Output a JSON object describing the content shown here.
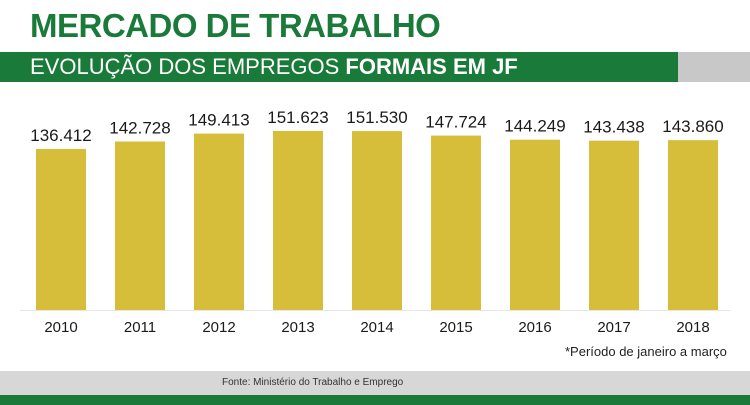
{
  "header": {
    "title": "MERCADO DE TRABALHO",
    "subtitle_light": "EVOLUÇÃO DOS EMPREGOS ",
    "subtitle_bold": "FORMAIS EM JF"
  },
  "chart_data": {
    "type": "bar",
    "categories": [
      "2010",
      "2011",
      "2012",
      "2013",
      "2014",
      "2015",
      "2016",
      "2017",
      "2018"
    ],
    "values": [
      136412,
      142728,
      149413,
      151623,
      151530,
      147724,
      144249,
      143438,
      143860
    ],
    "value_labels": [
      "136.412",
      "142.728",
      "149.413",
      "151.623",
      "151.530",
      "147.724",
      "144.249",
      "143.438",
      "143.860"
    ],
    "bar_color": "#d6bd3a",
    "grid": false,
    "legend": "none"
  },
  "note": "*Período de janeiro a março",
  "source": "Fonte: Ministério do Trabalho e Emprego",
  "colors": {
    "brand_green": "#1a7a3a",
    "banner_gray": "#c8c8c8",
    "footer_gray": "#d7d7d7"
  }
}
